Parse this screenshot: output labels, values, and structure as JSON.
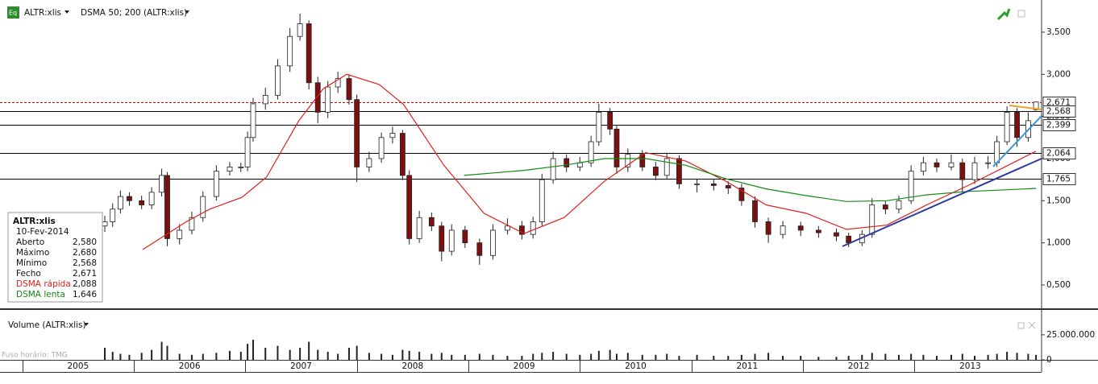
{
  "chart_data": [
    {
      "type": "candlestick",
      "title": "ALTR:xlis",
      "subtitle": "DSMA 50; 200 (ALTR:xlis)",
      "xlim": [
        2004.8,
        2014.14
      ],
      "ylim": [
        0.213,
        3.882
      ],
      "yticks": [
        {
          "value": 0.5,
          "label": "0,500"
        },
        {
          "value": 1,
          "label": "1,000"
        },
        {
          "value": 1.5,
          "label": "1,500"
        },
        {
          "value": 2,
          "label": "2,000"
        },
        {
          "value": 2.5,
          "label": "2,500"
        },
        {
          "value": 3,
          "label": "3,000"
        },
        {
          "value": 3.5,
          "label": "3,500"
        }
      ],
      "up_color": "#ffffff",
      "down_color": "#7a1010",
      "x": [
        2005.74,
        2005.81,
        2005.88,
        2005.96,
        2006.07,
        2006.16,
        2006.25,
        2006.3,
        2006.41,
        2006.52,
        2006.62,
        2006.74,
        2006.86,
        2006.96,
        2007.02,
        2007.07,
        2007.18,
        2007.29,
        2007.4,
        2007.49,
        2007.57,
        2007.65,
        2007.74,
        2007.83,
        2007.93,
        2008.0,
        2008.11,
        2008.22,
        2008.32,
        2008.41,
        2008.47,
        2008.56,
        2008.67,
        2008.76,
        2008.85,
        2008.97,
        2009.1,
        2009.22,
        2009.35,
        2009.48,
        2009.58,
        2009.66,
        2009.76,
        2009.88,
        2010.0,
        2010.1,
        2010.17,
        2010.27,
        2010.33,
        2010.43,
        2010.56,
        2010.68,
        2010.78,
        2010.89,
        2011.05,
        2011.2,
        2011.33,
        2011.45,
        2011.57,
        2011.69,
        2011.82,
        2011.98,
        2012.14,
        2012.3,
        2012.41,
        2012.53,
        2012.62,
        2012.74,
        2012.86,
        2012.97,
        2013.08,
        2013.2,
        2013.33,
        2013.43,
        2013.54,
        2013.66,
        2013.74,
        2013.83,
        2013.92,
        2014.02,
        2014.09
      ],
      "open": [
        1.2,
        1.25,
        1.4,
        1.55,
        1.5,
        1.45,
        1.6,
        1.8,
        1.05,
        1.15,
        1.3,
        1.55,
        1.85,
        1.9,
        1.9,
        2.25,
        2.65,
        2.75,
        3.1,
        3.45,
        3.6,
        2.9,
        2.55,
        2.85,
        2.95,
        2.7,
        1.9,
        2.0,
        2.25,
        2.3,
        1.8,
        1.05,
        1.3,
        1.2,
        0.9,
        1.15,
        1.0,
        0.85,
        1.15,
        1.2,
        1.1,
        1.25,
        1.75,
        2.0,
        1.9,
        1.95,
        2.2,
        2.55,
        2.35,
        1.9,
        2.05,
        1.9,
        1.8,
        2.0,
        1.7,
        1.7,
        1.68,
        1.65,
        1.5,
        1.25,
        1.1,
        1.2,
        1.15,
        1.12,
        1.08,
        1.0,
        1.1,
        1.45,
        1.4,
        1.5,
        1.85,
        1.95,
        1.9,
        1.95,
        1.75,
        1.95,
        1.95,
        2.2,
        2.55,
        2.25,
        2.58
      ],
      "high": [
        1.32,
        1.47,
        1.62,
        1.6,
        1.56,
        1.66,
        1.88,
        1.84,
        1.22,
        1.37,
        1.61,
        1.92,
        1.96,
        1.95,
        2.32,
        2.72,
        2.84,
        3.18,
        3.55,
        3.72,
        3.64,
        2.97,
        2.92,
        3.03,
        3.0,
        2.76,
        2.08,
        2.31,
        2.38,
        2.34,
        1.86,
        1.38,
        1.36,
        1.25,
        1.22,
        1.2,
        1.05,
        1.22,
        1.29,
        1.26,
        1.31,
        1.82,
        2.08,
        2.05,
        2.02,
        2.27,
        2.65,
        2.6,
        2.4,
        2.12,
        2.1,
        1.96,
        2.07,
        2.04,
        1.76,
        1.75,
        1.73,
        1.7,
        1.55,
        1.3,
        1.26,
        1.25,
        1.2,
        1.17,
        1.12,
        1.15,
        1.53,
        1.5,
        1.56,
        1.92,
        2.02,
        2.0,
        2.05,
        2.0,
        2.02,
        2.03,
        2.27,
        2.62,
        2.6,
        2.55,
        2.68
      ],
      "low": [
        1.13,
        1.19,
        1.35,
        1.44,
        1.4,
        1.4,
        1.55,
        0.96,
        0.98,
        1.1,
        1.25,
        1.5,
        1.8,
        1.84,
        1.85,
        2.2,
        2.58,
        2.7,
        3.03,
        3.4,
        2.82,
        2.42,
        2.48,
        2.78,
        2.64,
        1.72,
        1.84,
        1.95,
        2.18,
        1.74,
        0.98,
        1.0,
        1.14,
        0.78,
        0.85,
        0.94,
        0.74,
        0.8,
        1.1,
        1.04,
        1.05,
        1.2,
        1.7,
        1.84,
        1.85,
        1.9,
        2.15,
        2.28,
        1.82,
        1.84,
        1.85,
        1.74,
        1.75,
        1.64,
        1.6,
        1.62,
        1.58,
        1.44,
        1.18,
        1.0,
        1.05,
        1.08,
        1.06,
        1.02,
        0.95,
        0.96,
        1.06,
        1.34,
        1.35,
        1.46,
        1.8,
        1.84,
        1.86,
        1.6,
        1.7,
        1.88,
        1.9,
        2.16,
        2.14,
        2.2,
        2.568
      ],
      "close": [
        1.25,
        1.4,
        1.55,
        1.5,
        1.45,
        1.6,
        1.8,
        1.05,
        1.15,
        1.3,
        1.55,
        1.85,
        1.9,
        1.9,
        2.25,
        2.65,
        2.75,
        3.1,
        3.45,
        3.6,
        2.9,
        2.55,
        2.85,
        2.95,
        2.7,
        1.9,
        2.0,
        2.25,
        2.3,
        1.8,
        1.05,
        1.3,
        1.2,
        0.9,
        1.15,
        1.0,
        0.85,
        1.15,
        1.2,
        1.1,
        1.25,
        1.75,
        2.0,
        1.9,
        1.95,
        2.2,
        2.55,
        2.35,
        1.9,
        2.05,
        1.9,
        1.8,
        2.0,
        1.7,
        1.7,
        1.68,
        1.65,
        1.5,
        1.25,
        1.1,
        1.2,
        1.15,
        1.12,
        1.08,
        1.0,
        1.1,
        1.45,
        1.4,
        1.5,
        1.85,
        1.95,
        1.9,
        1.95,
        1.75,
        1.95,
        1.95,
        2.2,
        2.55,
        2.25,
        2.45,
        2.671
      ],
      "series": [
        {
          "name": "DSMA rápida",
          "color": "#e0201c",
          "value_label": "2,088",
          "x": [
            2006.08,
            2006.47,
            2006.68,
            2006.97,
            2007.19,
            2007.48,
            2007.7,
            2007.91,
            2008.2,
            2008.42,
            2008.78,
            2009.14,
            2009.5,
            2009.86,
            2010.22,
            2010.59,
            2010.95,
            2011.31,
            2011.67,
            2012.03,
            2012.39,
            2012.75,
            2013.11,
            2013.48,
            2013.84,
            2014.09
          ],
          "values": [
            0.92,
            1.25,
            1.4,
            1.54,
            1.78,
            2.45,
            2.83,
            3.0,
            2.88,
            2.64,
            1.92,
            1.35,
            1.11,
            1.3,
            1.73,
            2.07,
            1.97,
            1.73,
            1.45,
            1.35,
            1.16,
            1.21,
            1.45,
            1.68,
            1.92,
            2.088
          ]
        },
        {
          "name": "DSMA lenta",
          "color": "#138a13",
          "value_label": "1,646",
          "x": [
            2008.96,
            2009.5,
            2009.86,
            2010.22,
            2010.59,
            2010.95,
            2011.31,
            2011.67,
            2012.03,
            2012.39,
            2012.75,
            2013.11,
            2013.48,
            2013.84,
            2014.09
          ],
          "values": [
            1.8,
            1.86,
            1.92,
            2.0,
            2.0,
            1.92,
            1.76,
            1.64,
            1.56,
            1.49,
            1.5,
            1.57,
            1.61,
            1.63,
            1.646
          ]
        }
      ],
      "levels": [
        {
          "value": 2.671,
          "label": "2,671",
          "color": "#d00000",
          "dashed": true
        },
        {
          "value": 2.568,
          "label": "2,568",
          "color": "#000000",
          "dashed": false
        },
        {
          "value": 2.399,
          "label": "2,399",
          "color": "#000000",
          "dashed": false
        },
        {
          "value": 2.064,
          "label": "2,064",
          "color": "#000000",
          "dashed": false
        },
        {
          "value": 1.765,
          "label": "1,765",
          "color": "#000000",
          "dashed": false
        }
      ],
      "info_box": {
        "date": "10-Fev-2014",
        "rows": [
          {
            "label": "Aberto",
            "value": "2,580"
          },
          {
            "label": "Máximo",
            "value": "2,680"
          },
          {
            "label": "Mínimo",
            "value": "2,568"
          },
          {
            "label": "Fecho",
            "value": "2,671"
          }
        ]
      }
    },
    {
      "type": "bar",
      "title": "Volume (ALTR:xlis)",
      "note": "Fuso horário: TMG",
      "color": "#222222",
      "xlim": [
        2004.8,
        2014.14
      ],
      "xticks": [
        2005,
        2006,
        2007,
        2008,
        2009,
        2010,
        2011,
        2012,
        2013
      ],
      "ylim": [
        0,
        49000000
      ],
      "yticks": [
        0,
        {
          "value": 25000000,
          "label": "25.000.000"
        }
      ],
      "values": [
        12000000,
        8000000,
        6000000,
        5000000,
        7000000,
        10000000,
        18000000,
        14000000,
        6000000,
        5000000,
        6000000,
        7000000,
        9000000,
        8000000,
        16000000,
        20000000,
        12000000,
        14000000,
        10000000,
        12000000,
        18000000,
        10000000,
        8000000,
        6000000,
        12000000,
        14000000,
        7000000,
        6000000,
        5000000,
        10000000,
        9000000,
        8000000,
        6000000,
        7000000,
        5000000,
        5000000,
        6000000,
        5000000,
        4000000,
        4000000,
        6000000,
        7000000,
        8000000,
        6000000,
        5000000,
        6000000,
        9000000,
        10000000,
        6000000,
        7000000,
        5000000,
        5000000,
        6000000,
        4000000,
        5000000,
        4000000,
        4000000,
        5000000,
        6000000,
        7000000,
        4000000,
        4000000,
        3000000,
        3000000,
        4000000,
        5000000,
        7000000,
        6000000,
        5000000,
        6000000,
        5000000,
        4000000,
        5000000,
        6000000,
        4000000,
        5000000,
        6000000,
        8000000,
        7000000,
        6000000,
        5000000
      ]
    }
  ]
}
